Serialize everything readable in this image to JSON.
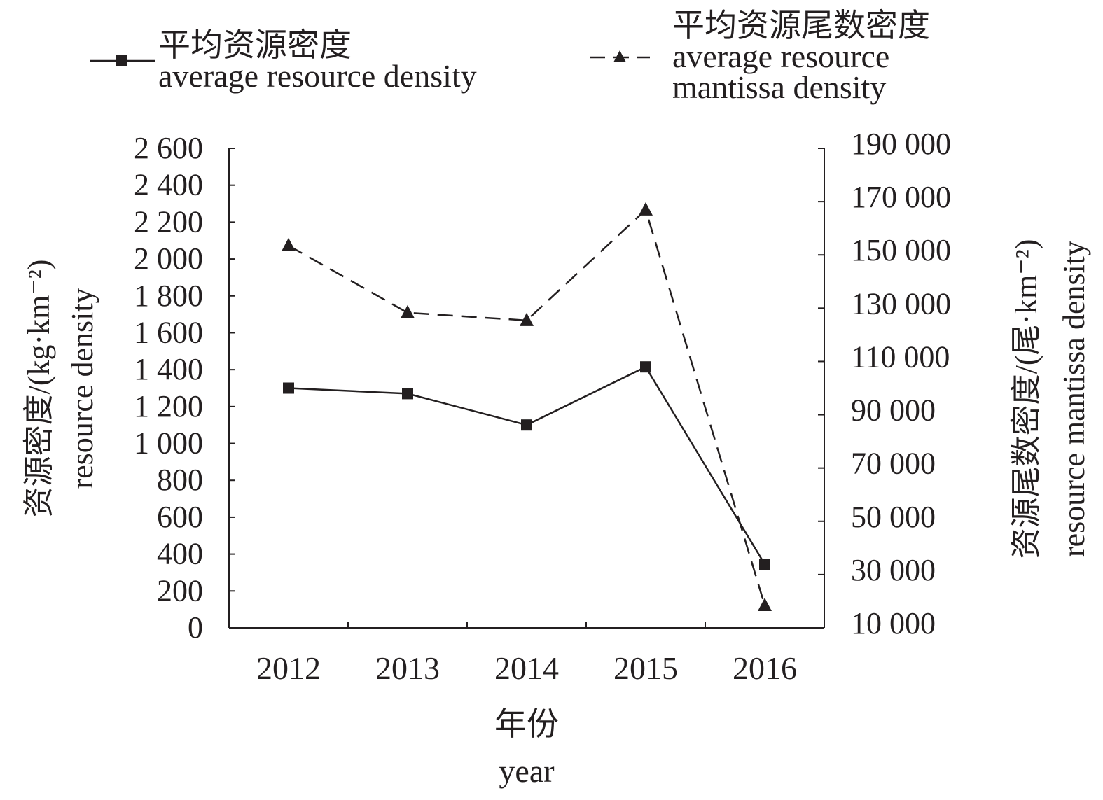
{
  "chart_data": {
    "type": "line",
    "categories": [
      "2012",
      "2013",
      "2014",
      "2015",
      "2016"
    ],
    "xlabel_cn": "年份",
    "xlabel_en": "year",
    "ylabel_left_cn": "资源密度/(kg·km⁻²)",
    "ylabel_left_en": "resource density",
    "ylabel_right_cn": "资源尾数密度/(尾·km⁻²)",
    "ylabel_right_en": "resource mantissa density",
    "ylim_left": [
      0,
      2600
    ],
    "ylim_right": [
      10000,
      190000
    ],
    "yticks_left": [
      "0",
      "200",
      "400",
      "600",
      "800",
      "1 000",
      "1 200",
      "1 400",
      "1 600",
      "1 800",
      "2 000",
      "2 200",
      "2 400",
      "2 600"
    ],
    "yticks_right": [
      "10 000",
      "30 000",
      "50 000",
      "70 000",
      "90 000",
      "110 000",
      "130 000",
      "150 000",
      "170 000",
      "190 000"
    ],
    "legend_placement": "top",
    "series": [
      {
        "name_cn": "平均资源密度",
        "name_en": "average resource density",
        "axis": "left",
        "style": "solid",
        "marker": "square",
        "values": [
          1300,
          1270,
          1100,
          1415,
          345
        ]
      },
      {
        "name_cn": "平均资源尾数密度",
        "name_en_line1": "average resource",
        "name_en_line2": "mantissa density",
        "axis": "right",
        "style": "dashed",
        "marker": "triangle",
        "values": [
          153500,
          128300,
          125400,
          166900,
          18400
        ]
      }
    ]
  }
}
